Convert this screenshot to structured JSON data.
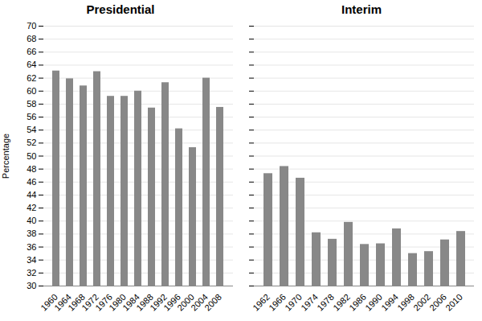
{
  "chart_data": [
    {
      "type": "bar",
      "title": "Presidential",
      "categories": [
        "1960",
        "1964",
        "1968",
        "1972",
        "1976",
        "1980",
        "1984",
        "1988",
        "1992",
        "1996",
        "2000",
        "2004",
        "2008"
      ],
      "values": [
        63.1,
        61.9,
        60.8,
        63.0,
        59.2,
        59.2,
        60.0,
        57.4,
        61.3,
        54.2,
        51.3,
        62.0,
        57.5
      ],
      "color": "#888888",
      "y_label": "Percentage",
      "ylim": [
        30,
        70
      ],
      "yticks": [
        30,
        32,
        34,
        36,
        38,
        40,
        42,
        44,
        46,
        48,
        50,
        52,
        54,
        56,
        58,
        60,
        62,
        64,
        66,
        68,
        70
      ],
      "grid": true
    },
    {
      "type": "bar",
      "title": "Interim",
      "categories": [
        "1962",
        "1966",
        "1970",
        "1974",
        "1978",
        "1982",
        "1986",
        "1990",
        "1994",
        "1998",
        "2002",
        "2006",
        "2010"
      ],
      "values": [
        47.3,
        48.4,
        46.6,
        38.2,
        37.2,
        39.8,
        36.4,
        36.5,
        38.8,
        35.0,
        35.3,
        37.1,
        38.4
      ],
      "color": "#888888",
      "ylim": [
        30,
        70
      ],
      "yticks": [
        30,
        32,
        34,
        36,
        38,
        40,
        42,
        44,
        46,
        48,
        50,
        52,
        54,
        56,
        58,
        60,
        62,
        64,
        66,
        68,
        70
      ],
      "grid": true,
      "tick_labels": "x"
    }
  ]
}
